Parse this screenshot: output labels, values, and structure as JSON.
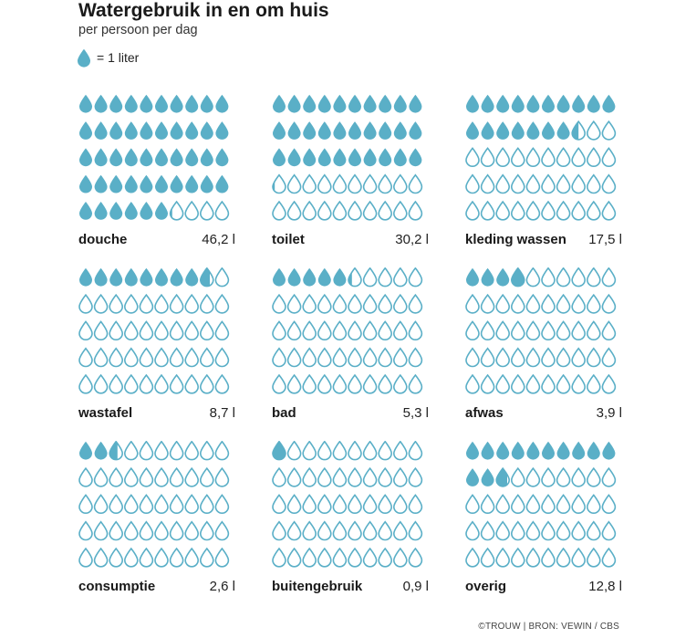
{
  "header": {
    "title": "Watergebruik in en om huis",
    "subtitle": "per persoon per dag"
  },
  "legend": {
    "label": "= 1 liter",
    "icon": "water-drop-icon"
  },
  "colors": {
    "drop_fill": "#5aafc7",
    "drop_outline": "#5aafc7",
    "background": "#ffffff"
  },
  "chart_data": {
    "type": "pictogram",
    "unit": "l",
    "unit_per_icon": 1,
    "grid": {
      "columns": 10,
      "rows": 5
    },
    "categories": [
      "douche",
      "toilet",
      "kleding wassen",
      "wastafel",
      "bad",
      "afwas",
      "consumptie",
      "buitengebruik",
      "overig"
    ],
    "values": [
      46.2,
      30.2,
      17.5,
      8.7,
      5.3,
      3.9,
      2.6,
      0.9,
      12.8
    ],
    "value_labels": [
      "46,2 l",
      "30,2 l",
      "17,5 l",
      "8,7 l",
      "5,3 l",
      "3,9 l",
      "2,6 l",
      "0,9 l",
      "12,8 l"
    ]
  },
  "footer": {
    "credit": "©TROUW |  BRON: VEWIN / CBS"
  }
}
